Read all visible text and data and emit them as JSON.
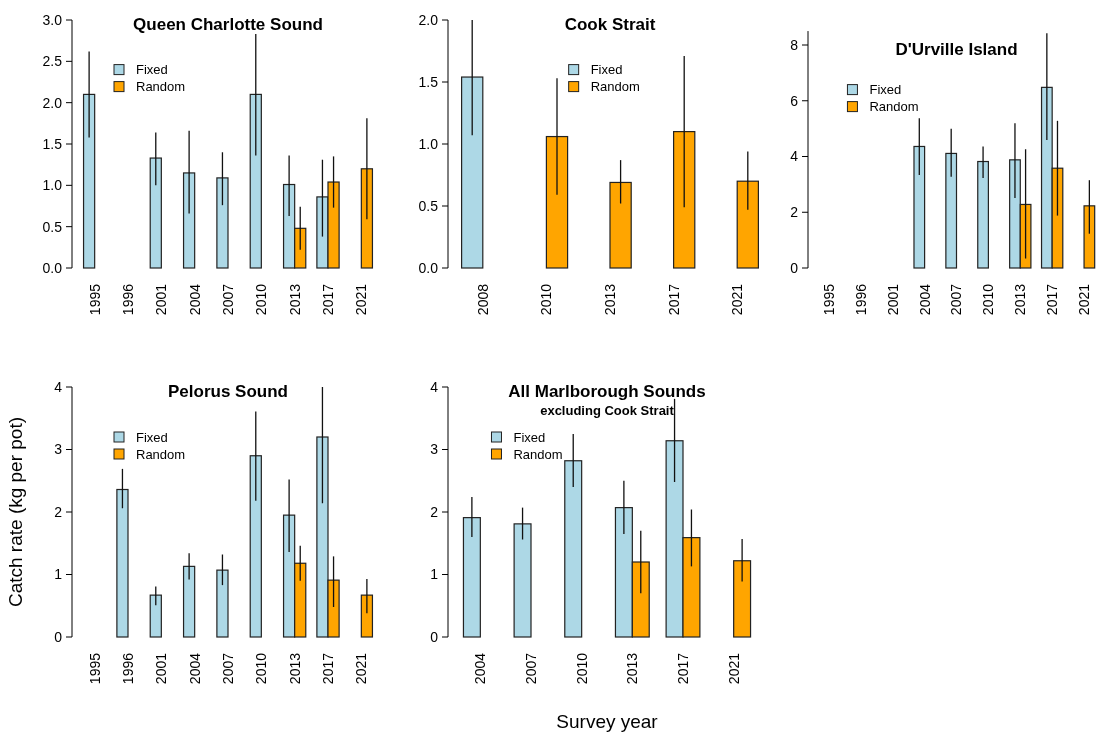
{
  "chart_data": [
    {
      "type": "bar",
      "title": "Queen Charlotte Sound",
      "categories": [
        "1995",
        "1996",
        "2001",
        "2004",
        "2007",
        "2010",
        "2013",
        "2017",
        "2021"
      ],
      "ylim": [
        0,
        3
      ],
      "yticks": [
        {
          "value": 0,
          "label": "0.0"
        },
        {
          "value": 0.5,
          "label": "0.5"
        },
        {
          "value": 1,
          "label": "1.0"
        },
        {
          "value": 1.5,
          "label": "1.5"
        },
        {
          "value": 2,
          "label": "2.0"
        },
        {
          "value": 2.5,
          "label": "2.5"
        },
        {
          "value": 3,
          "label": "3.0"
        }
      ],
      "legend": "top left",
      "series": [
        {
          "name": "Fixed",
          "color": "#add8e6",
          "values": [
            2.1,
            null,
            1.33,
            1.15,
            1.09,
            2.1,
            1.01,
            0.86,
            null
          ],
          "errors": [
            [
              1.58,
              2.62
            ],
            null,
            [
              1.0,
              1.64
            ],
            [
              0.66,
              1.66
            ],
            [
              0.76,
              1.4
            ],
            [
              1.36,
              2.83
            ],
            [
              0.63,
              1.36
            ],
            [
              0.38,
              1.31
            ],
            null
          ]
        },
        {
          "name": "Random",
          "color": "#ffa500",
          "values": [
            null,
            null,
            null,
            null,
            null,
            null,
            0.48,
            1.04,
            1.2
          ],
          "errors": [
            null,
            null,
            null,
            null,
            null,
            null,
            [
              0.22,
              0.74
            ],
            [
              0.73,
              1.35
            ],
            [
              0.59,
              1.81
            ]
          ]
        }
      ]
    },
    {
      "type": "bar",
      "title": "Cook Strait",
      "categories": [
        "2008",
        "2010",
        "2013",
        "2017",
        "2021"
      ],
      "ylim": [
        0,
        2
      ],
      "yticks": [
        {
          "value": 0,
          "label": "0.0"
        },
        {
          "value": 0.5,
          "label": "0.5"
        },
        {
          "value": 1,
          "label": "1.0"
        },
        {
          "value": 1.5,
          "label": "1.5"
        },
        {
          "value": 2,
          "label": "2.0"
        }
      ],
      "legend": "top",
      "series": [
        {
          "name": "Fixed",
          "color": "#add8e6",
          "values": [
            1.54,
            null,
            null,
            null,
            null
          ],
          "errors": [
            [
              1.07,
              2.0
            ],
            null,
            null,
            null,
            null
          ]
        },
        {
          "name": "Random",
          "color": "#ffa500",
          "values": [
            null,
            1.06,
            0.69,
            1.1,
            0.7
          ],
          "errors": [
            null,
            [
              0.59,
              1.53
            ],
            [
              0.52,
              0.87
            ],
            [
              0.49,
              1.71
            ],
            [
              0.47,
              0.94
            ]
          ]
        }
      ]
    },
    {
      "type": "bar",
      "title": "D'Urville Island",
      "categories": [
        "1995",
        "1996",
        "2001",
        "2004",
        "2007",
        "2010",
        "2013",
        "2017",
        "2021"
      ],
      "ylim": [
        0,
        8.5
      ],
      "yticks": [
        0,
        2,
        4,
        6,
        8
      ],
      "legend": "top left",
      "series": [
        {
          "name": "Fixed",
          "color": "#add8e6",
          "values": [
            null,
            null,
            null,
            4.36,
            4.11,
            3.82,
            3.88,
            6.48,
            null
          ],
          "errors": [
            null,
            null,
            null,
            [
              3.34,
              5.37
            ],
            [
              3.27,
              5.0
            ],
            [
              3.23,
              4.36
            ],
            [
              2.51,
              5.19
            ],
            [
              4.59,
              8.42
            ],
            null
          ]
        },
        {
          "name": "Random",
          "color": "#ffa500",
          "values": [
            null,
            null,
            null,
            null,
            null,
            null,
            2.28,
            3.58,
            2.23
          ],
          "errors": [
            null,
            null,
            null,
            null,
            null,
            null,
            [
              0.34,
              4.26
            ],
            [
              1.88,
              5.28
            ],
            [
              1.23,
              3.15
            ]
          ]
        }
      ]
    },
    {
      "type": "bar",
      "title": "Pelorus Sound",
      "ylabel": "Catch rate (kg per pot)",
      "categories": [
        "1995",
        "1996",
        "2001",
        "2004",
        "2007",
        "2010",
        "2013",
        "2017",
        "2021"
      ],
      "ylim": [
        0,
        4
      ],
      "yticks": [
        0,
        1,
        2,
        3,
        4
      ],
      "legend": "top left",
      "series": [
        {
          "name": "Fixed",
          "color": "#add8e6",
          "values": [
            null,
            2.36,
            0.67,
            1.13,
            1.07,
            2.9,
            1.95,
            3.2,
            null
          ],
          "errors": [
            null,
            [
              2.06,
              2.69
            ],
            [
              0.51,
              0.81
            ],
            [
              0.92,
              1.34
            ],
            [
              0.83,
              1.32
            ],
            [
              2.18,
              3.61
            ],
            [
              1.36,
              2.52
            ],
            [
              2.14,
              4.0
            ],
            null
          ]
        },
        {
          "name": "Random",
          "color": "#ffa500",
          "values": [
            null,
            null,
            null,
            null,
            null,
            null,
            1.18,
            0.91,
            0.67
          ],
          "errors": [
            null,
            null,
            null,
            null,
            null,
            null,
            [
              0.9,
              1.46
            ],
            [
              0.48,
              1.29
            ],
            [
              0.38,
              0.93
            ]
          ]
        }
      ]
    },
    {
      "type": "bar",
      "title": "All Marlborough Sounds",
      "subtitle": "excluding Cook Strait",
      "xlabel": "Survey year",
      "categories": [
        "2004",
        "2007",
        "2010",
        "2013",
        "2017",
        "2021"
      ],
      "ylim": [
        0,
        4
      ],
      "yticks": [
        0,
        1,
        2,
        3,
        4
      ],
      "legend": "top left",
      "series": [
        {
          "name": "Fixed",
          "color": "#add8e6",
          "values": [
            1.91,
            1.81,
            2.82,
            2.07,
            3.14,
            null
          ],
          "errors": [
            [
              1.6,
              2.24
            ],
            [
              1.56,
              2.07
            ],
            [
              2.4,
              3.25
            ],
            [
              1.65,
              2.5
            ],
            [
              2.48,
              3.81
            ],
            null
          ]
        },
        {
          "name": "Random",
          "color": "#ffa500",
          "values": [
            null,
            null,
            null,
            1.2,
            1.59,
            1.22
          ],
          "errors": [
            null,
            null,
            null,
            [
              0.7,
              1.7
            ],
            [
              1.13,
              2.04
            ],
            [
              0.89,
              1.57
            ]
          ]
        }
      ]
    }
  ]
}
